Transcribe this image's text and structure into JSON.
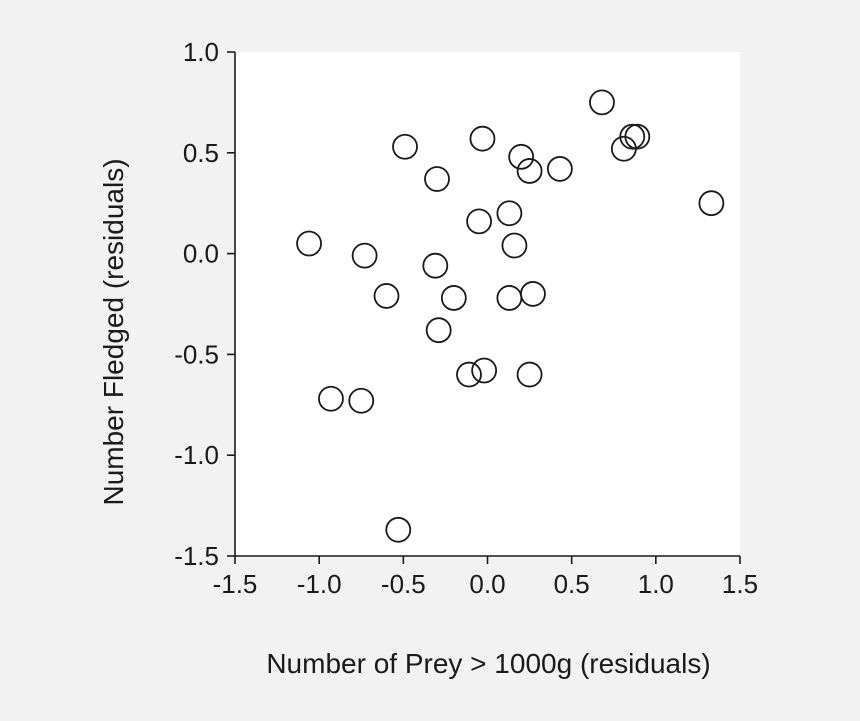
{
  "chart_data": {
    "type": "scatter",
    "title": "",
    "xlabel": "Number of Prey > 1000g (residuals)",
    "ylabel": "Number Fledged (residuals)",
    "xlim": [
      -1.5,
      1.5
    ],
    "ylim": [
      -1.5,
      1.0
    ],
    "x_ticks": [
      -1.5,
      -1.0,
      -0.5,
      0.0,
      0.5,
      1.0,
      1.5
    ],
    "y_ticks": [
      -1.5,
      -1.0,
      -0.5,
      0.0,
      0.5,
      1.0
    ],
    "x_tick_labels": [
      "-1.5",
      "-1.0",
      "-0.5",
      "0.0",
      "0.5",
      "1.0",
      "1.5"
    ],
    "y_tick_labels": [
      "-1.5",
      "-1.0",
      "-0.5",
      "0.0",
      "0.5",
      "1.0"
    ],
    "grid": false,
    "legend": "none",
    "marker": "open-circle",
    "colors": {
      "background": "#f2f2f2",
      "plot_area": "#ffffff",
      "marker": "#1a1a1a",
      "axis": "#1a1a1a"
    },
    "points": [
      {
        "x": -1.06,
        "y": 0.05
      },
      {
        "x": -0.73,
        "y": -0.01
      },
      {
        "x": -0.93,
        "y": -0.72
      },
      {
        "x": -0.75,
        "y": -0.73
      },
      {
        "x": -0.6,
        "y": -0.21
      },
      {
        "x": -0.53,
        "y": -1.37
      },
      {
        "x": -0.49,
        "y": 0.53
      },
      {
        "x": -0.3,
        "y": 0.37
      },
      {
        "x": -0.31,
        "y": -0.06
      },
      {
        "x": -0.29,
        "y": -0.38
      },
      {
        "x": -0.2,
        "y": -0.22
      },
      {
        "x": -0.11,
        "y": -0.6
      },
      {
        "x": -0.05,
        "y": 0.16
      },
      {
        "x": -0.03,
        "y": 0.57
      },
      {
        "x": -0.02,
        "y": -0.58
      },
      {
        "x": 0.13,
        "y": 0.2
      },
      {
        "x": 0.13,
        "y": -0.22
      },
      {
        "x": 0.16,
        "y": 0.04
      },
      {
        "x": 0.2,
        "y": 0.48
      },
      {
        "x": 0.25,
        "y": 0.41
      },
      {
        "x": 0.25,
        "y": -0.6
      },
      {
        "x": 0.27,
        "y": -0.2
      },
      {
        "x": 0.43,
        "y": 0.42
      },
      {
        "x": 0.68,
        "y": 0.75
      },
      {
        "x": 0.81,
        "y": 0.52
      },
      {
        "x": 0.86,
        "y": 0.58
      },
      {
        "x": 0.89,
        "y": 0.58
      },
      {
        "x": 1.33,
        "y": 0.25
      }
    ]
  }
}
